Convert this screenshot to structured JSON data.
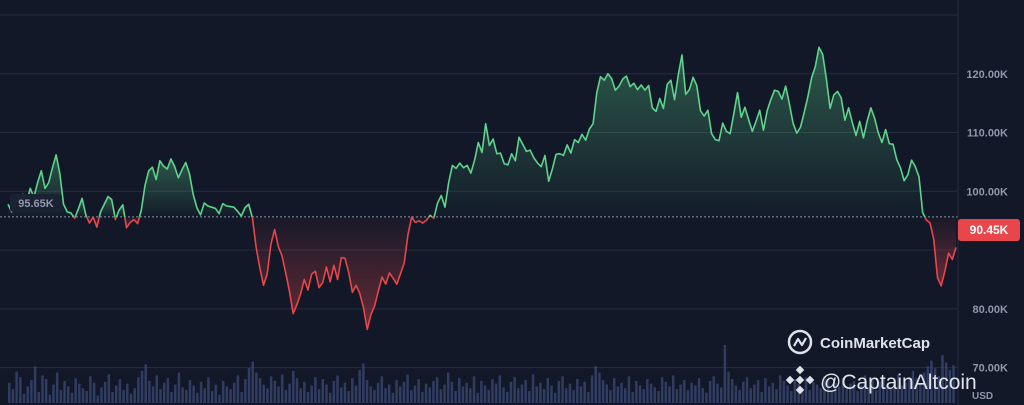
{
  "chart_data": {
    "type": "area",
    "baseline_value": 95650,
    "baseline_label": "95.65K",
    "current_value": 90450,
    "current_label": "90.45K",
    "currency": "USD",
    "ylim": [
      65000,
      130000
    ],
    "y_ticks": [
      {
        "value": 70000,
        "label": "70.00K"
      },
      {
        "value": 80000,
        "label": "80.00K"
      },
      {
        "value": 100000,
        "label": "100.00K"
      },
      {
        "value": 110000,
        "label": "110.00K"
      },
      {
        "value": 120000,
        "label": "120.00K"
      }
    ],
    "grid": true,
    "colors": {
      "background": "#121828",
      "up": "#5fd48b",
      "down": "#e8464a",
      "volume": "#3a4670",
      "grid": "#262d40",
      "baseline": "#8a92a6"
    },
    "price_values": [
      97800,
      96500,
      97500,
      98500,
      99500,
      98000,
      100500,
      99000,
      101500,
      103500,
      100500,
      101500,
      104000,
      106200,
      103000,
      97800,
      96500,
      96300,
      95400,
      97000,
      98800,
      96000,
      94600,
      95600,
      93900,
      96500,
      97800,
      99100,
      98600,
      95200,
      96800,
      97700,
      93800,
      94700,
      95200,
      94500,
      96800,
      101000,
      103500,
      104100,
      102000,
      105200,
      104300,
      103800,
      105500,
      104200,
      102300,
      103700,
      104900,
      103000,
      99500,
      97200,
      96000,
      98000,
      97500,
      97300,
      97100,
      96200,
      97900,
      97500,
      97400,
      97300,
      96600,
      95800,
      97200,
      97800,
      95500,
      90500,
      87000,
      84000,
      86000,
      91000,
      93500,
      90600,
      89000,
      86100,
      83000,
      79200,
      80700,
      82500,
      85000,
      83200,
      85900,
      86400,
      83600,
      84500,
      87100,
      84600,
      87400,
      85000,
      88700,
      88600,
      86200,
      82800,
      84000,
      82600,
      80200,
      76500,
      79000,
      80500,
      83000,
      85400,
      84200,
      86100,
      85200,
      84200,
      86000,
      87800,
      92600,
      95600,
      94700,
      95000,
      94600,
      95100,
      95900,
      95400,
      98000,
      99300,
      97300,
      101500,
      104400,
      103900,
      104800,
      104000,
      104400,
      103100,
      105300,
      108300,
      106600,
      111500,
      107800,
      108900,
      106400,
      106500,
      104700,
      104500,
      106400,
      105200,
      109200,
      108000,
      106800,
      107000,
      105700,
      104800,
      104200,
      106100,
      101700,
      103800,
      106300,
      106400,
      106100,
      107900,
      106500,
      108800,
      108300,
      109700,
      108700,
      110600,
      111500,
      116800,
      119500,
      118900,
      120000,
      119200,
      117200,
      117900,
      119100,
      119600,
      117800,
      118400,
      117300,
      118100,
      117200,
      118000,
      114200,
      113600,
      115800,
      114100,
      118200,
      118900,
      115600,
      119800,
      123200,
      116500,
      117300,
      119400,
      118000,
      113700,
      112800,
      113800,
      109800,
      108800,
      108600,
      111600,
      110200,
      109800,
      113200,
      116800,
      112600,
      114300,
      112200,
      110200,
      111900,
      113800,
      110400,
      113700,
      115600,
      117200,
      117000,
      115700,
      117900,
      114900,
      111600,
      109900,
      110900,
      113400,
      116100,
      119300,
      121200,
      124500,
      123300,
      119100,
      114100,
      116400,
      117000,
      115900,
      112100,
      114200,
      111700,
      109500,
      111900,
      109100,
      111900,
      114200,
      112500,
      110000,
      108300,
      110500,
      108100,
      108000,
      105400,
      104000,
      101800,
      102800,
      105300,
      104200,
      102500,
      96400,
      95100,
      94600,
      91800,
      85300,
      83900,
      86400,
      89500,
      88400,
      90450
    ],
    "volume_values": [
      22,
      15,
      34,
      28,
      10,
      18,
      25,
      40,
      12,
      30,
      26,
      9,
      20,
      33,
      14,
      24,
      18,
      11,
      27,
      21,
      16,
      13,
      29,
      22,
      8,
      17,
      23,
      31,
      12,
      19,
      26,
      14,
      21,
      10,
      16,
      28,
      35,
      42,
      24,
      18,
      30,
      15,
      22,
      27,
      12,
      20,
      33,
      17,
      14,
      25,
      19,
      11,
      23,
      16,
      28,
      13,
      20,
      9,
      24,
      18,
      15,
      22,
      30,
      12,
      26,
      38,
      45,
      33,
      27,
      20,
      16,
      29,
      24,
      18,
      31,
      14,
      21,
      35,
      27,
      16,
      23,
      12,
      19,
      28,
      15,
      26,
      20,
      11,
      24,
      30,
      17,
      22,
      13,
      27,
      19,
      36,
      43,
      25,
      18,
      14,
      22,
      29,
      16,
      20,
      11,
      25,
      18,
      23,
      31,
      14,
      19,
      26,
      12,
      21,
      17,
      24,
      28,
      15,
      20,
      33,
      23,
      13,
      27,
      18,
      22,
      16,
      29,
      11,
      24,
      19,
      14,
      26,
      21,
      30,
      17,
      12,
      23,
      28,
      16,
      20,
      25,
      13,
      31,
      18,
      22,
      15,
      27,
      19,
      11,
      24,
      29,
      16,
      21,
      14,
      26,
      18,
      23,
      12,
      30,
      40,
      33,
      25,
      20,
      14,
      27,
      18,
      22,
      16,
      29,
      12,
      24,
      19,
      15,
      26,
      21,
      17,
      13,
      28,
      23,
      18,
      30,
      15,
      20,
      25,
      14,
      22,
      19,
      27,
      16,
      11,
      24,
      29,
      21,
      17,
      63,
      34,
      26,
      19,
      14,
      23,
      28,
      16,
      20,
      25,
      12,
      27,
      18,
      22,
      15,
      30,
      24,
      19,
      13,
      26,
      21,
      17,
      28,
      14,
      23,
      20,
      16,
      29,
      25,
      12,
      22,
      18,
      27,
      15,
      21,
      24,
      13,
      19,
      30,
      17,
      26,
      14,
      23,
      28,
      20,
      16,
      25,
      31,
      19,
      22,
      28,
      35,
      27,
      21,
      33,
      40,
      46,
      38,
      29,
      52,
      44,
      36,
      41
    ]
  },
  "watermarks": {
    "brand": "CoinMarketCap",
    "handle": "@CaptainAltcoin",
    "brand_icon": "coinmarketcap-logo-icon",
    "handle_icon": "binance-diamond-icon"
  }
}
